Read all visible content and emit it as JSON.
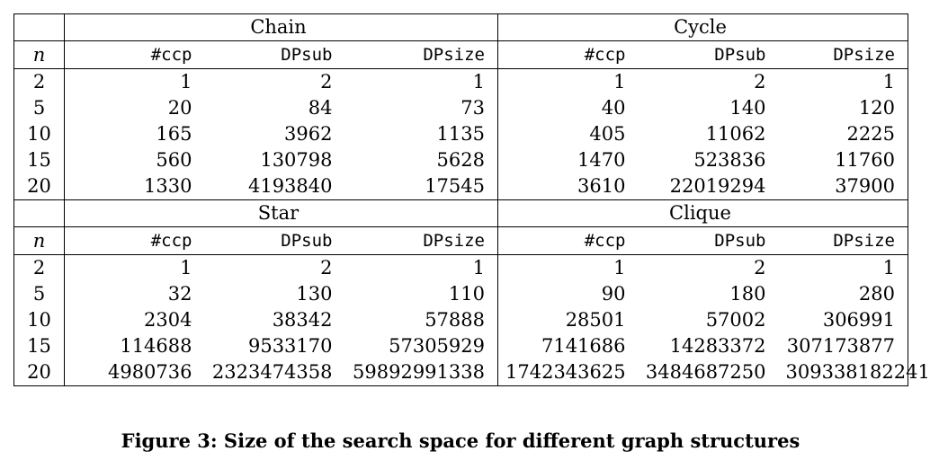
{
  "blocks": [
    {
      "groups": [
        "Chain",
        "Cycle"
      ],
      "n_label": "n",
      "col_labels": [
        "#ccp",
        "DPsub",
        "DPsize",
        "#ccp",
        "DPsub",
        "DPsize"
      ],
      "rows": [
        [
          "2",
          "1",
          "2",
          "1",
          "1",
          "2",
          "1"
        ],
        [
          "5",
          "20",
          "84",
          "73",
          "40",
          "140",
          "120"
        ],
        [
          "10",
          "165",
          "3962",
          "1135",
          "405",
          "11062",
          "2225"
        ],
        [
          "15",
          "560",
          "130798",
          "5628",
          "1470",
          "523836",
          "11760"
        ],
        [
          "20",
          "1330",
          "4193840",
          "17545",
          "3610",
          "22019294",
          "37900"
        ]
      ]
    },
    {
      "groups": [
        "Star",
        "Clique"
      ],
      "n_label": "n",
      "col_labels": [
        "#ccp",
        "DPsub",
        "DPsize",
        "#ccp",
        "DPsub",
        "DPsize"
      ],
      "rows": [
        [
          "2",
          "1",
          "2",
          "1",
          "1",
          "2",
          "1"
        ],
        [
          "5",
          "32",
          "130",
          "110",
          "90",
          "180",
          "280"
        ],
        [
          "10",
          "2304",
          "38342",
          "57888",
          "28501",
          "57002",
          "306991"
        ],
        [
          "15",
          "114688",
          "9533170",
          "57305929",
          "7141686",
          "14283372",
          "307173877"
        ],
        [
          "20",
          "4980736",
          "2323474358",
          "59892991338",
          "1742343625",
          "3484687250",
          "309338182241"
        ]
      ]
    }
  ],
  "caption": "Figure 3: Size of the search space for different graph structures"
}
